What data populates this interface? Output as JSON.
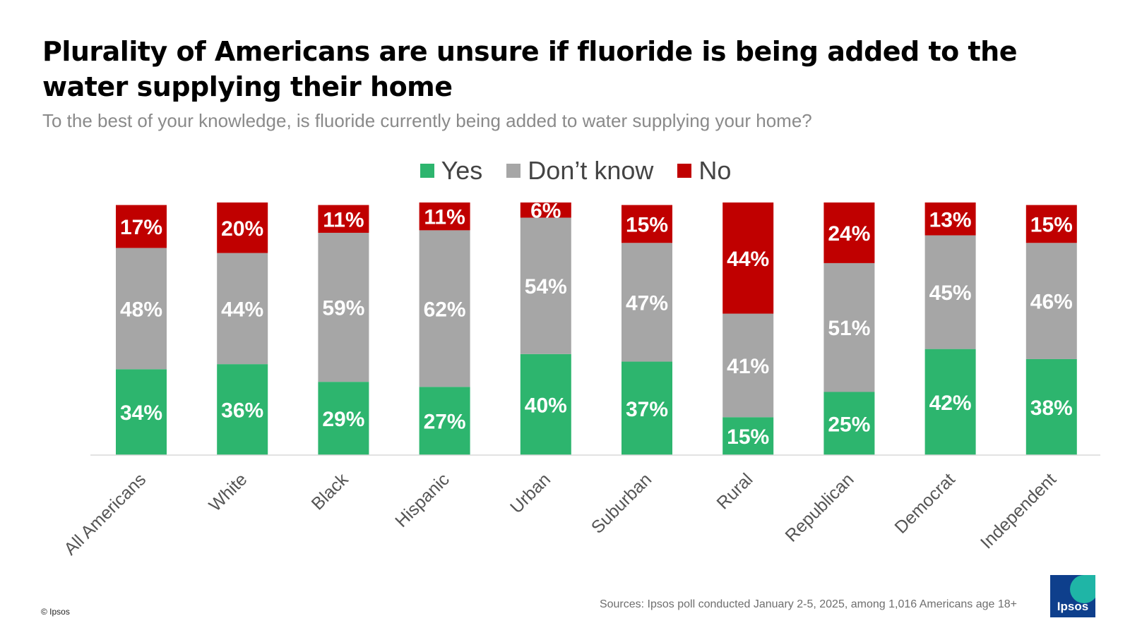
{
  "title": "Plurality of Americans are unsure if fluoride is being added to the water supplying their home",
  "subtitle": "To the best of your knowledge, is fluoride currently being added to water supplying your home?",
  "legend": [
    {
      "label": "Yes",
      "color": "#2db56e"
    },
    {
      "label": "Don’t know",
      "color": "#a6a6a6"
    },
    {
      "label": "No",
      "color": "#c00000"
    }
  ],
  "chart_data": {
    "type": "bar",
    "stacked": true,
    "categories": [
      "All Americans",
      "White",
      "Black",
      "Hispanic",
      "Urban",
      "Suburban",
      "Rural",
      "Republican",
      "Democrat",
      "Independent"
    ],
    "series": [
      {
        "name": "Yes",
        "color": "#2db56e",
        "values": [
          34,
          36,
          29,
          27,
          40,
          37,
          15,
          25,
          42,
          38
        ]
      },
      {
        "name": "Don’t know",
        "color": "#a6a6a6",
        "values": [
          48,
          44,
          59,
          62,
          54,
          47,
          41,
          51,
          45,
          46
        ]
      },
      {
        "name": "No",
        "color": "#c00000",
        "values": [
          17,
          20,
          11,
          11,
          6,
          15,
          44,
          24,
          13,
          15
        ]
      }
    ],
    "value_suffix": "%",
    "legend_position": "top-center",
    "grid": false
  },
  "footer": {
    "source": "Sources:  Ipsos poll conducted January 2-5, 2025, among 1,016 Americans age 18+",
    "copyright": "© Ipsos",
    "logo_text": "Ipsos"
  }
}
